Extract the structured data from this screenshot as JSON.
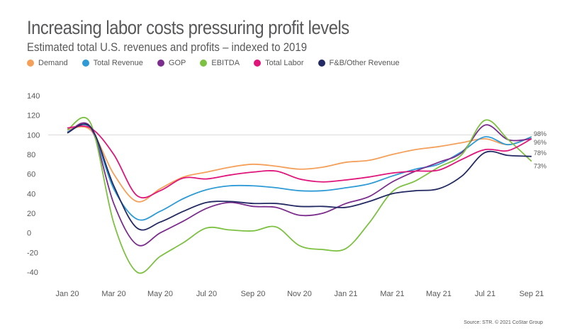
{
  "chart_data": {
    "type": "line",
    "title": "Increasing labor costs pressuring profit levels",
    "subtitle": "Estimated total U.S. revenues and profits – indexed to 2019",
    "x": [
      "Jan 20",
      "Feb 20",
      "Mar 20",
      "Apr 20",
      "May 20",
      "Jun 20",
      "Jul 20",
      "Aug 20",
      "Sep 20",
      "Oct 20",
      "Nov 20",
      "Dec 20",
      "Jan 21",
      "Feb 21",
      "Mar 21",
      "Apr 21",
      "May 21",
      "Jun 21",
      "Jul 21",
      "Aug 21",
      "Sep 21"
    ],
    "xticks": [
      "Jan 20",
      "Mar 20",
      "May 20",
      "Jul 20",
      "Sep 20",
      "Nov 20",
      "Jan 21",
      "Mar 21",
      "May 21",
      "Jul 21",
      "Sep 21"
    ],
    "yticks": [
      140,
      120,
      100,
      80,
      60,
      40,
      20,
      0,
      -20,
      -40
    ],
    "ylim": [
      -40,
      140
    ],
    "reference_line": 100,
    "legend_position": "top-left",
    "series": [
      {
        "name": "Demand",
        "color": "#f5a05a",
        "values": [
          105,
          105,
          60,
          32,
          45,
          57,
          62,
          67,
          70,
          68,
          65,
          67,
          72,
          74,
          80,
          85,
          88,
          92,
          96,
          90,
          98
        ]
      },
      {
        "name": "Total Revenue",
        "color": "#2e9bd6",
        "values": [
          103,
          107,
          45,
          14,
          22,
          35,
          44,
          48,
          48,
          46,
          43,
          43,
          46,
          50,
          58,
          65,
          70,
          83,
          98,
          90,
          98
        ]
      },
      {
        "name": "GOP",
        "color": "#7b2d8e",
        "values": [
          102,
          108,
          30,
          -12,
          0,
          12,
          25,
          31,
          27,
          26,
          18,
          20,
          30,
          37,
          52,
          63,
          72,
          82,
          110,
          95,
          96
        ]
      },
      {
        "name": "EBITDA",
        "color": "#7dc142",
        "values": [
          105,
          112,
          10,
          -40,
          -24,
          -10,
          5,
          3,
          2,
          6,
          -13,
          -17,
          -16,
          10,
          42,
          53,
          67,
          80,
          115,
          95,
          73
        ]
      },
      {
        "name": "Total Labor",
        "color": "#e0157a",
        "values": [
          107,
          107,
          80,
          38,
          43,
          56,
          55,
          59,
          62,
          63,
          55,
          52,
          54,
          57,
          61,
          63,
          64,
          75,
          85,
          84,
          96
        ]
      },
      {
        "name": "F&B/Other Revenue",
        "color": "#232a63",
        "values": [
          102,
          108,
          48,
          5,
          11,
          22,
          31,
          32,
          30,
          30,
          27,
          27,
          26,
          32,
          40,
          43,
          45,
          58,
          82,
          79,
          78
        ]
      }
    ],
    "end_labels": [
      "98%",
      "96%",
      "78%",
      "73%"
    ],
    "source": "Source: STR. © 2021 CoStar Group"
  }
}
